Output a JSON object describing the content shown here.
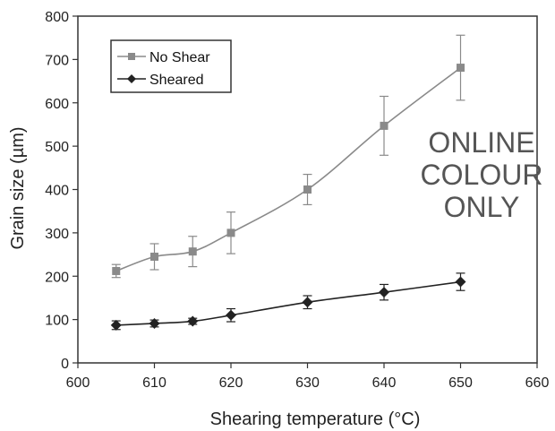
{
  "chart_data": {
    "type": "line",
    "xlabel": "Shearing temperature (°C)",
    "ylabel": "Grain size (µm)",
    "xlim": [
      600,
      660
    ],
    "ylim": [
      0,
      800
    ],
    "x_ticks": [
      "600",
      "610",
      "620",
      "630",
      "640",
      "650",
      "660"
    ],
    "y_ticks": [
      "0",
      "100",
      "200",
      "300",
      "400",
      "500",
      "600",
      "700",
      "800"
    ],
    "grid": false,
    "legend_position": "top-left",
    "series": [
      {
        "name": "No Shear",
        "color": "#8a8a8a",
        "marker": "square",
        "x": [
          605,
          610,
          615,
          620,
          630,
          640,
          650
        ],
        "y": [
          212,
          245,
          257,
          300,
          400,
          547,
          681
        ],
        "error": [
          15,
          30,
          35,
          48,
          35,
          68,
          75
        ]
      },
      {
        "name": "Sheared",
        "color": "#222222",
        "marker": "diamond",
        "x": [
          605,
          610,
          615,
          620,
          630,
          640,
          650
        ],
        "y": [
          87,
          91,
          96,
          110,
          140,
          163,
          187
        ],
        "error": [
          10,
          8,
          7,
          15,
          15,
          18,
          20
        ]
      }
    ],
    "annotation": [
      "ONLINE",
      "COLOUR",
      "ONLY"
    ]
  }
}
